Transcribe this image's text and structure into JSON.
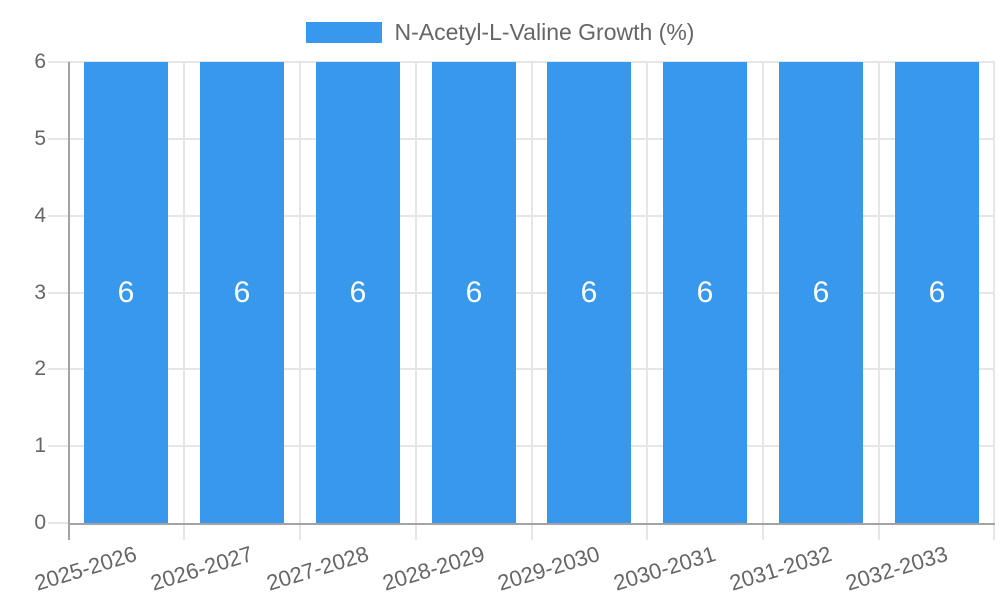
{
  "chart_data": {
    "type": "bar",
    "title": "N-Acetyl-L-Valine Growth (%)",
    "categories": [
      "2025-2026",
      "2026-2027",
      "2027-2028",
      "2028-2029",
      "2029-2030",
      "2030-2031",
      "2031-2032",
      "2032-2033"
    ],
    "values": [
      6,
      6,
      6,
      6,
      6,
      6,
      6,
      6
    ],
    "bar_labels": [
      "6",
      "6",
      "6",
      "6",
      "6",
      "6",
      "6",
      "6"
    ],
    "xlabel": "",
    "ylabel": "",
    "ylim": [
      0,
      6
    ],
    "yticks": [
      "0",
      "1",
      "2",
      "3",
      "4",
      "5",
      "6"
    ],
    "grid": true,
    "legend_position": "top",
    "colors": {
      "bar": "#3899EC",
      "gridline": "#e6e6e6",
      "axis_line": "#a3a3a3",
      "axis_text": "#666666",
      "bar_label_text": "#ffffff",
      "background": "#ffffff"
    }
  }
}
